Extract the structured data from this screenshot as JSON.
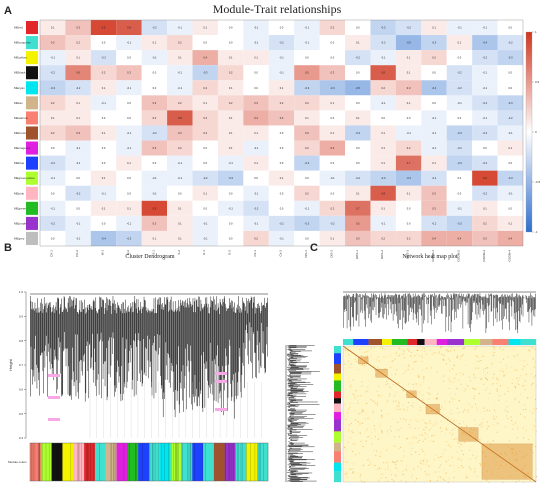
{
  "panels": {
    "a_label": "A",
    "b_label": "B",
    "c_label": "C"
  },
  "chart_data": [
    {
      "type": "heatmap",
      "title": "Module-Trait relationships",
      "rows": [
        "MEred",
        "MEturquoise",
        "MEyellow",
        "MEblack",
        "MEcyan",
        "MEtan",
        "MEsalmon",
        "MEbrown",
        "MEmagenta",
        "MEblue",
        "MEgreenyellow",
        "MEpink",
        "MEgreen",
        "MEpurple",
        "MEgrey"
      ],
      "row_colors": [
        "#e2272a",
        "#40e0d0",
        "#f3f300",
        "#111111",
        "#00e5ee",
        "#d2b48c",
        "#fa8072",
        "#a0522d",
        "#e020e0",
        "#1e40ff",
        "#adff2f",
        "#ffb6c1",
        "#22bb22",
        "#9a32cd",
        "#bebebe"
      ],
      "columns": [
        "CK-1",
        "CK-2",
        "M-1",
        "M-2",
        "S-1",
        "S-2",
        "D-1",
        "D-2",
        "Cb-1",
        "Cb-2",
        "DIS-1",
        "DIS-2",
        "GDS-1",
        "GDS-2",
        "GDS-3",
        "GSDM-1",
        "GSDM-2",
        "GSDM-3",
        "GSDM-4"
      ],
      "values": [
        [
          0.1,
          0.3,
          0.9,
          0.8,
          -0.2,
          -0.1,
          0.1,
          0.0,
          -0.1,
          0.0,
          -0.1,
          0.2,
          0.0,
          -0.3,
          -0.2,
          0.1,
          -0.1,
          -0.1,
          0.0
        ],
        [
          0.3,
          0.2,
          0.0,
          -0.1,
          0.1,
          0.2,
          0.0,
          0.0,
          -0.1,
          -0.2,
          -0.1,
          0.0,
          0.1,
          -0.2,
          -0.5,
          -0.3,
          0.1,
          -0.4,
          -0.2
        ],
        [
          -0.1,
          0.1,
          -0.2,
          0.0,
          -0.1,
          0.1,
          0.4,
          0.1,
          0.1,
          -0.1,
          0.0,
          0.0,
          -0.2,
          -0.1,
          0.1,
          0.2,
          0.0,
          -0.2,
          -0.3
        ],
        [
          -0.2,
          0.6,
          0.2,
          0.3,
          0.0,
          -0.1,
          -0.3,
          0.2,
          0.0,
          -0.1,
          0.5,
          0.3,
          0.0,
          0.8,
          0.1,
          0.0,
          -0.2,
          -0.1,
          0.0
        ],
        [
          -0.3,
          -0.2,
          0.1,
          -0.1,
          0.0,
          -0.1,
          0.2,
          0.1,
          0.0,
          0.1,
          -0.3,
          -0.4,
          -0.5,
          0.2,
          0.3,
          -0.4,
          -0.2,
          -0.1,
          0.0
        ],
        [
          0.2,
          0.1,
          -0.1,
          0.0,
          0.3,
          0.2,
          0.1,
          0.2,
          0.3,
          0.2,
          0.2,
          0.1,
          0.0,
          -0.1,
          0.1,
          0.0,
          -0.1,
          -0.2,
          -0.3
        ],
        [
          0.1,
          0.1,
          0.0,
          0.0,
          0.2,
          0.8,
          0.2,
          0.1,
          0.4,
          0.3,
          0.1,
          0.0,
          0.1,
          0.0,
          0.0,
          -0.1,
          0.0,
          -0.1,
          -0.2
        ],
        [
          0.2,
          0.3,
          0.1,
          -0.1,
          -0.2,
          0.3,
          0.2,
          0.1,
          0.1,
          0.0,
          0.3,
          0.1,
          -0.3,
          0.1,
          -0.1,
          -0.1,
          -0.3,
          -0.2,
          -0.1
        ],
        [
          0.0,
          -0.1,
          0.0,
          -0.1,
          0.3,
          0.2,
          0.0,
          0.1,
          -0.1,
          0.0,
          0.2,
          0.4,
          0.0,
          0.1,
          0.2,
          -0.1,
          -0.2,
          0.0,
          0.1
        ],
        [
          -0.2,
          -0.1,
          0.0,
          0.1,
          0.0,
          -0.1,
          0.0,
          -0.1,
          0.1,
          0.0,
          -0.3,
          0.0,
          0.0,
          0.1,
          0.7,
          0.1,
          -0.3,
          -0.2,
          0.0
        ],
        [
          -0.1,
          0.0,
          0.1,
          0.0,
          -0.1,
          -0.1,
          -0.2,
          -0.3,
          0.0,
          0.1,
          0.0,
          -0.1,
          -0.2,
          -0.3,
          -0.4,
          -0.2,
          0.0,
          0.9,
          -0.3
        ],
        [
          0.0,
          -0.2,
          -0.1,
          0.0,
          -0.1,
          0.0,
          0.1,
          0.0,
          -0.1,
          0.0,
          0.2,
          0.0,
          0.1,
          0.8,
          0.1,
          0.3,
          0.0,
          -0.2,
          -0.1
        ],
        [
          -0.1,
          0.0,
          0.1,
          0.1,
          0.9,
          0.1,
          0.0,
          -0.1,
          -0.2,
          0.0,
          -0.1,
          0.2,
          0.7,
          0.1,
          0.0,
          0.3,
          -0.1,
          0.1,
          0.0
        ],
        [
          -0.2,
          -0.1,
          0.0,
          -0.1,
          0.3,
          0.1,
          -0.1,
          0.0,
          -0.1,
          -0.2,
          -0.3,
          -0.2,
          0.5,
          -0.1,
          0.0,
          -0.2,
          -0.3,
          0.2,
          0.1
        ],
        [
          0.0,
          -0.1,
          -0.4,
          -0.3,
          0.1,
          0.1,
          -0.1,
          0.0,
          0.2,
          -0.1,
          0.0,
          0.1,
          0.3,
          0.2,
          0.2,
          0.4,
          0.4,
          0.3,
          0.4
        ]
      ],
      "color_scale": {
        "min": -1,
        "max": 1,
        "low": "#2f6ecd",
        "mid": "#ffffff",
        "high": "#d0351e"
      },
      "legend_ticks": [
        "1",
        "0.5",
        "0",
        "-0.5",
        "-1"
      ]
    },
    {
      "type": "dendrogram",
      "title": "Cluster Dendrogram",
      "ylabel": "Height",
      "y_ticks": [
        "1.0",
        "0.9",
        "0.8",
        "0.7",
        "0.6",
        "0.5",
        "0.4"
      ],
      "ylim": [
        0.4,
        1.0
      ],
      "color_bar_label": "Module colors",
      "module_color_sequence": [
        "#fa8072",
        "#adff2f",
        "#111111",
        "#f3f300",
        "#ffb6c1",
        "#e2272a",
        "#40e0d0",
        "#d2b48c",
        "#e020e0",
        "#22bb22",
        "#1e40ff",
        "#40e0d0",
        "#00e5ee",
        "#adff2f",
        "#40e0d0",
        "#1e40ff",
        "#40e0d0",
        "#a0522d",
        "#9a32cd",
        "#40e0d0",
        "#f3f300",
        "#40e0d0"
      ]
    },
    {
      "type": "heatmap",
      "title": "Network heat map plot",
      "side_color_sequence": [
        "#40e0d0",
        "#1e40ff",
        "#a0522d",
        "#f3f300",
        "#22bb22",
        "#e2272a",
        "#111111",
        "#ffb6c1",
        "#e020e0",
        "#9a32cd",
        "#adff2f",
        "#d2b48c",
        "#fa8072",
        "#00e5ee",
        "#40e0d0"
      ]
    }
  ]
}
